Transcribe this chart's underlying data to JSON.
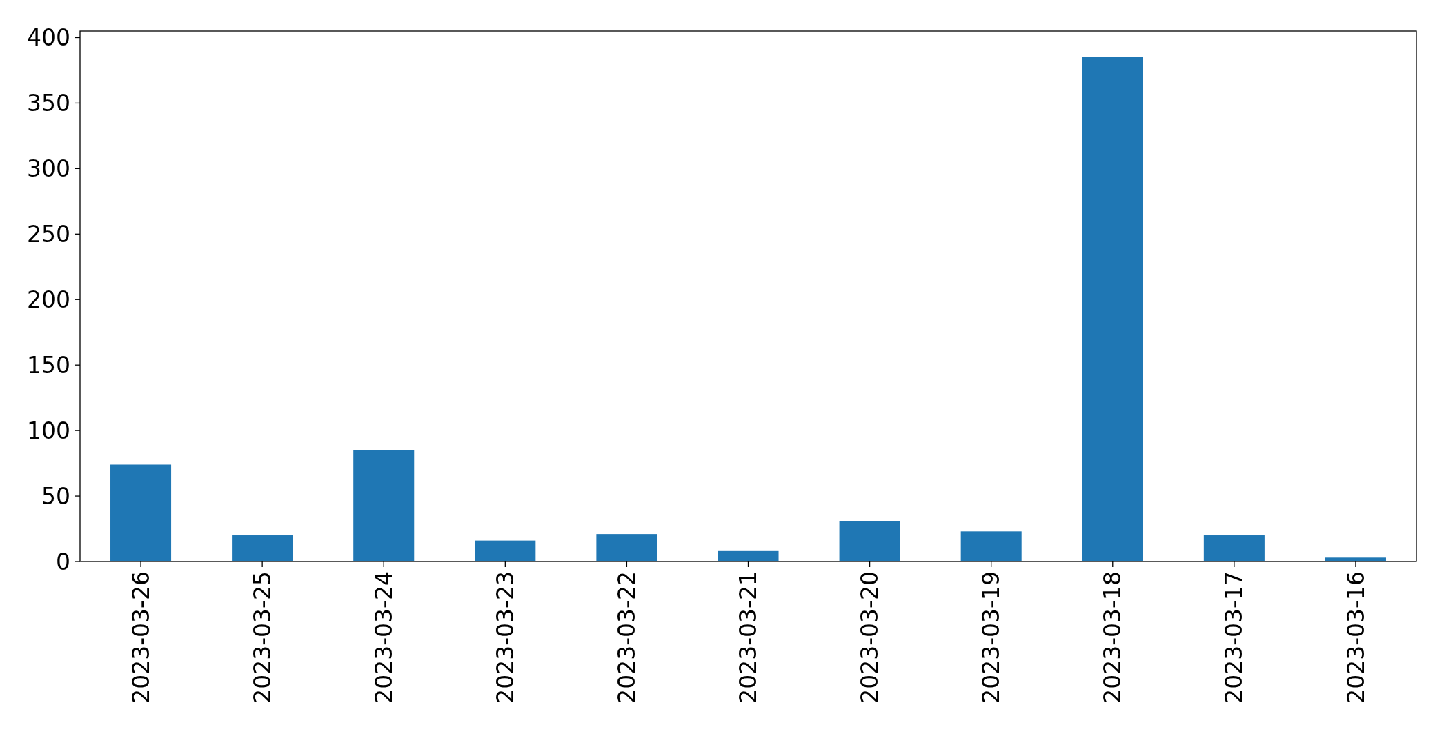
{
  "chart_data": {
    "type": "bar",
    "categories": [
      "2023-03-26",
      "2023-03-25",
      "2023-03-24",
      "2023-03-23",
      "2023-03-22",
      "2023-03-21",
      "2023-03-20",
      "2023-03-19",
      "2023-03-18",
      "2023-03-17",
      "2023-03-16"
    ],
    "values": [
      74,
      20,
      85,
      16,
      21,
      8,
      31,
      23,
      385,
      20,
      3
    ],
    "color": "#1f77b4",
    "ylim": [
      0,
      405
    ],
    "yticks": [
      0,
      50,
      100,
      150,
      200,
      250,
      300,
      350,
      400
    ],
    "grid": false
  }
}
